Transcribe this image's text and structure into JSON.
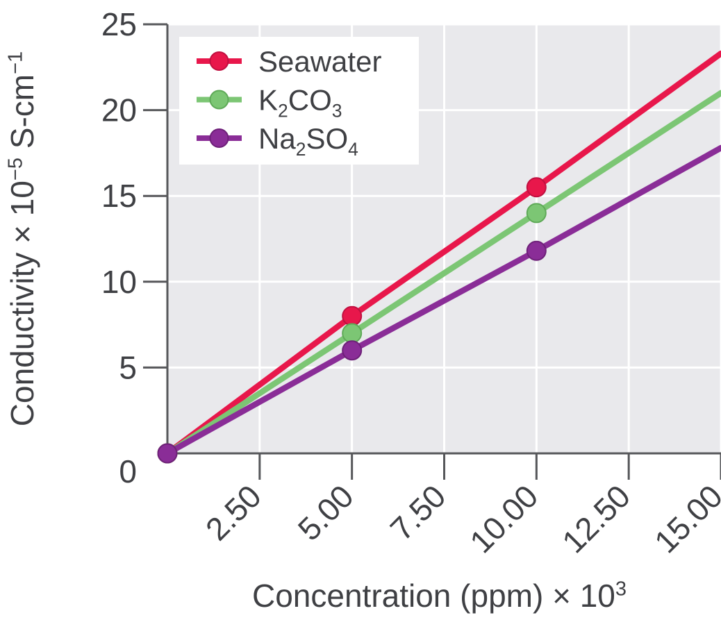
{
  "colors": {
    "page_bg": "#ffffff",
    "plot_bg": "#e9e9ec",
    "grid": "#ffffff",
    "spine": "#56575a",
    "text": "#3f4044",
    "legend_bg": "#ffffff"
  },
  "chart_data": {
    "type": "line",
    "title": "",
    "xlabel": "Concentration (ppm) × 10³",
    "ylabel": "Conductivity × 10⁻⁵ S-cm⁻¹",
    "xlabel_parts": [
      [
        "Concentration (ppm) × 10",
        "n"
      ],
      [
        "3",
        "sup"
      ]
    ],
    "ylabel_parts": [
      [
        "Conductivity × 10",
        "n"
      ],
      [
        "−5",
        "sup"
      ],
      [
        " S-cm",
        "n"
      ],
      [
        "−1",
        "sup"
      ]
    ],
    "x_axis": {
      "range": [
        0,
        15
      ],
      "ticks": [
        2.5,
        5,
        7.5,
        10,
        12.5,
        15
      ],
      "tick_labels": [
        "2.50",
        "5.00",
        "7.50",
        "10.00",
        "12.50",
        "15.00"
      ],
      "tick_label_rotation": -45
    },
    "y_axis": {
      "range": [
        0,
        25
      ],
      "ticks": [
        0,
        5,
        10,
        15,
        20,
        25
      ],
      "tick_labels": [
        "0",
        "5",
        "10",
        "15",
        "20",
        "25"
      ]
    },
    "grid": true,
    "legend": {
      "position": "upper-left",
      "entries": [
        {
          "label": "Seawater",
          "parts": [
            [
              "Seawater",
              "n"
            ]
          ]
        },
        {
          "label": "K2CO3",
          "parts": [
            [
              "K",
              "n"
            ],
            [
              "2",
              "sub"
            ],
            [
              "CO",
              "n"
            ],
            [
              "3",
              "sub"
            ]
          ]
        },
        {
          "label": "Na2SO4",
          "parts": [
            [
              "Na",
              "n"
            ],
            [
              "2",
              "sub"
            ],
            [
              "SO",
              "n"
            ],
            [
              "4",
              "sub"
            ]
          ]
        }
      ]
    },
    "series": [
      {
        "name": "Seawater",
        "color": "#e8174b",
        "edge_color": "#c01040",
        "x": [
          0,
          5,
          10,
          15
        ],
        "y": [
          0,
          8,
          15.5,
          23.3
        ],
        "markers_at": [
          0,
          5,
          10
        ]
      },
      {
        "name": "K2CO3",
        "color": "#7cc674",
        "edge_color": "#5ea957",
        "x": [
          0,
          5,
          10,
          15
        ],
        "y": [
          0,
          7,
          14,
          21
        ],
        "markers_at": [
          0,
          5,
          10
        ]
      },
      {
        "name": "Na2SO4",
        "color": "#8a2d97",
        "edge_color": "#6e2079",
        "x": [
          0,
          5,
          10,
          15
        ],
        "y": [
          0,
          6,
          11.8,
          17.8
        ],
        "markers_at": [
          0,
          5,
          10
        ]
      }
    ]
  }
}
